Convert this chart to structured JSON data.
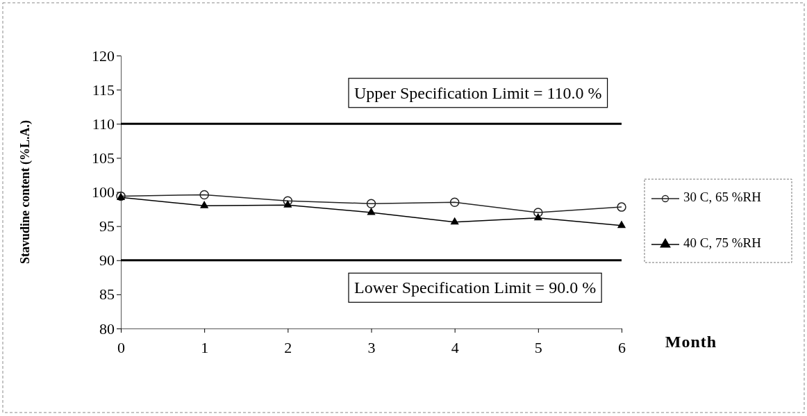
{
  "chart_data": {
    "type": "line",
    "xlabel": "Month",
    "ylabel": "Stavudine content (%L.A.)",
    "x": [
      0,
      1,
      2,
      3,
      4,
      5,
      6
    ],
    "xlim": [
      0,
      6
    ],
    "xticks": [
      0,
      1,
      2,
      3,
      4,
      5,
      6
    ],
    "ylim": [
      80,
      120
    ],
    "yticks": [
      80,
      85,
      90,
      95,
      100,
      105,
      110,
      115,
      120
    ],
    "series": [
      {
        "name": "30 C, 65 %RH",
        "color": "#222222",
        "marker": "circle",
        "values": [
          99.4,
          99.6,
          98.7,
          98.3,
          98.5,
          97.0,
          97.8
        ]
      },
      {
        "name": "40 C, 75 %RH",
        "color": "#000000",
        "marker": "triangle",
        "values": [
          99.2,
          98.0,
          98.1,
          97.0,
          95.6,
          96.2,
          95.1
        ]
      }
    ],
    "ref_lines": [
      {
        "axis": "y",
        "value": 110,
        "label": "Upper Specification Limit = 110.0 %",
        "color": "#000000"
      },
      {
        "axis": "y",
        "value": 90,
        "label": "Lower Specification Limit = 90.0 %",
        "color": "#000000"
      }
    ],
    "grid": false,
    "legend": "right",
    "line_style": "solid"
  }
}
